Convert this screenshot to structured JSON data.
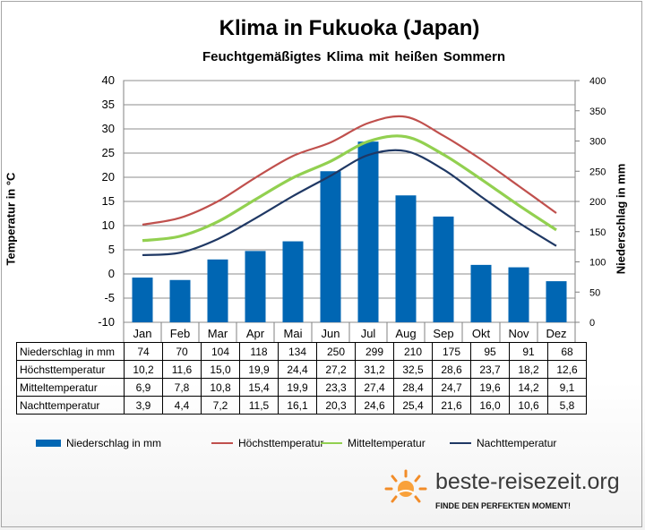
{
  "title": "Klima in Fukuoka (Japan)",
  "subtitle": "Feuchtgemäßigtes Klima mit heißen Sommern",
  "brand": {
    "name": "beste-reisezeit.org",
    "tagline": "FINDE DEN PERFEKTEN MOMENT!"
  },
  "colors": {
    "bar": "#0066b3",
    "hoechst": "#c0504d",
    "mittel": "#92d050",
    "nacht": "#1f3864"
  },
  "chart_data": {
    "type": "bar",
    "categories": [
      "Jan",
      "Feb",
      "Mar",
      "Apr",
      "Mai",
      "Jun",
      "Jul",
      "Aug",
      "Sep",
      "Okt",
      "Nov",
      "Dez"
    ],
    "ylabel": "Temperatur in °C",
    "y2label": "Niederschlag in mm",
    "ylim": [
      -10,
      40
    ],
    "y2lim": [
      0,
      400
    ],
    "yticks": [
      "-10",
      "-5",
      "0",
      "5",
      "10",
      "15",
      "20",
      "25",
      "30",
      "35",
      "40"
    ],
    "y2ticks": [
      "0",
      "50",
      "100",
      "150",
      "200",
      "250",
      "300",
      "350",
      "400"
    ],
    "grid": true,
    "legend_position": "bottom",
    "series": [
      {
        "name": "Niederschlag in mm",
        "type": "bar",
        "axis": "right",
        "values": [
          74,
          70,
          104,
          118,
          134,
          250,
          299,
          210,
          175,
          95,
          91,
          68
        ],
        "labels": [
          "74",
          "70",
          "104",
          "118",
          "134",
          "250",
          "299",
          "210",
          "175",
          "95",
          "91",
          "68"
        ]
      },
      {
        "name": "Höchsttemperatur",
        "type": "line",
        "axis": "left",
        "values": [
          10.2,
          11.6,
          15.0,
          19.9,
          24.4,
          27.2,
          31.2,
          32.5,
          28.6,
          23.7,
          18.2,
          12.6
        ],
        "labels": [
          "10,2",
          "11,6",
          "15,0",
          "19,9",
          "24,4",
          "27,2",
          "31,2",
          "32,5",
          "28,6",
          "23,7",
          "18,2",
          "12,6"
        ]
      },
      {
        "name": "Mitteltemperatur",
        "type": "line",
        "axis": "left",
        "values": [
          6.9,
          7.8,
          10.8,
          15.4,
          19.9,
          23.3,
          27.4,
          28.4,
          24.7,
          19.6,
          14.2,
          9.1
        ],
        "labels": [
          "6,9",
          "7,8",
          "10,8",
          "15,4",
          "19,9",
          "23,3",
          "27,4",
          "28,4",
          "24,7",
          "19,6",
          "14,2",
          "9,1"
        ]
      },
      {
        "name": "Nachttemperatur",
        "type": "line",
        "axis": "left",
        "values": [
          3.9,
          4.4,
          7.2,
          11.5,
          16.1,
          20.3,
          24.6,
          25.4,
          21.6,
          16.0,
          10.6,
          5.8
        ],
        "labels": [
          "3,9",
          "4,4",
          "7,2",
          "11,5",
          "16,1",
          "20,3",
          "24,6",
          "25,4",
          "21,6",
          "16,0",
          "10,6",
          "5,8"
        ]
      }
    ]
  }
}
